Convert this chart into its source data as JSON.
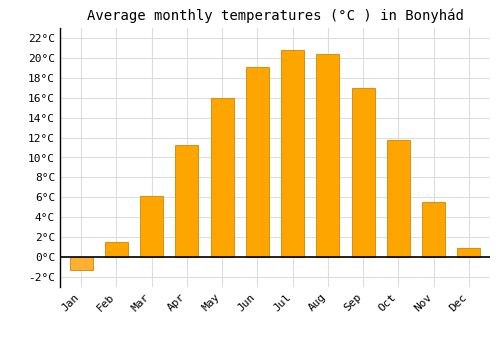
{
  "title": "Average monthly temperatures (°C ) in Bonyhád",
  "months": [
    "Jan",
    "Feb",
    "Mar",
    "Apr",
    "May",
    "Jun",
    "Jul",
    "Aug",
    "Sep",
    "Oct",
    "Nov",
    "Dec"
  ],
  "values": [
    -1.3,
    1.5,
    6.1,
    11.3,
    16.0,
    19.1,
    20.8,
    20.4,
    17.0,
    11.8,
    5.5,
    0.9
  ],
  "bar_color_positive": "#FFA500",
  "bar_color_negative": "#FFB030",
  "bar_edge_color": "#CC8800",
  "ylim": [
    -3,
    23
  ],
  "yticks": [
    -2,
    0,
    2,
    4,
    6,
    8,
    10,
    12,
    14,
    16,
    18,
    20,
    22
  ],
  "ytick_labels": [
    "-2°C",
    "0°C",
    "2°C",
    "4°C",
    "6°C",
    "8°C",
    "10°C",
    "12°C",
    "14°C",
    "16°C",
    "18°C",
    "20°C",
    "22°C"
  ],
  "background_color": "#ffffff",
  "grid_color": "#dddddd",
  "title_fontsize": 10,
  "tick_fontsize": 8,
  "zero_line_color": "#000000",
  "left_spine_color": "#000000"
}
